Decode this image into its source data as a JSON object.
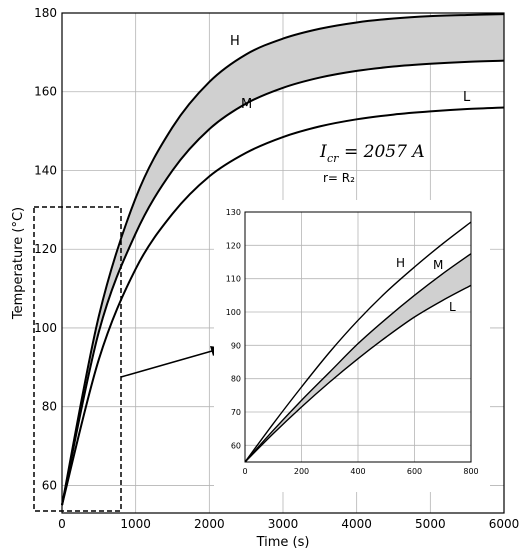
{
  "chart_data": [
    {
      "type": "line",
      "xlabel": "Time (s)",
      "ylabel": "Temperature (°C)",
      "xlim": [
        0,
        6000
      ],
      "ylim": [
        53,
        180
      ],
      "x_ticks": [
        "0",
        "1000",
        "2000",
        "3000",
        "4000",
        "5000",
        "6000"
      ],
      "y_ticks": [
        "60",
        "80",
        "100",
        "120",
        "140",
        "160",
        "180"
      ],
      "grid": true,
      "series": [
        {
          "name": "H",
          "x": [
            0,
            500,
            1000,
            1500,
            2000,
            2500,
            3000,
            3500,
            4000,
            4500,
            5000,
            5500,
            6000
          ],
          "values": [
            55,
            103,
            133,
            151,
            162.5,
            169.5,
            173.5,
            176,
            177.6,
            178.6,
            179.2,
            179.5,
            179.7
          ]
        },
        {
          "name": "M",
          "x": [
            0,
            500,
            1000,
            1500,
            2000,
            2500,
            3000,
            3500,
            4000,
            4500,
            5000,
            5500,
            6000
          ],
          "values": [
            55,
            99,
            124,
            140,
            150.5,
            157,
            161,
            163.6,
            165.3,
            166.4,
            167.1,
            167.6,
            167.9
          ]
        },
        {
          "name": "L",
          "x": [
            0,
            500,
            1000,
            1500,
            2000,
            2500,
            3000,
            3500,
            4000,
            4500,
            5000,
            5500,
            6000
          ],
          "values": [
            55,
            92,
            115,
            129,
            138.5,
            144.5,
            148.5,
            151.2,
            153,
            154.2,
            155,
            155.6,
            156
          ]
        }
      ],
      "shaded_band": [
        "H",
        "M"
      ],
      "annotations": [
        "H",
        "M",
        "L",
        "I",
        "cr",
        "= 2057 A",
        "r= R₂"
      ]
    },
    {
      "type": "line",
      "role": "inset",
      "xlim": [
        0,
        800
      ],
      "ylim": [
        55,
        130
      ],
      "x_ticks": [
        "0",
        "200",
        "400",
        "600",
        "800"
      ],
      "y_ticks": [
        "60",
        "70",
        "80",
        "90",
        "100",
        "110",
        "120",
        "130"
      ],
      "grid": true,
      "series": [
        {
          "name": "H",
          "x": [
            0,
            100,
            200,
            300,
            400,
            500,
            600,
            700,
            800
          ],
          "values": [
            55,
            66.5,
            77.5,
            88,
            97.5,
            106,
            113.5,
            120.5,
            127
          ]
        },
        {
          "name": "M",
          "x": [
            0,
            100,
            200,
            300,
            400,
            500,
            600,
            700,
            800
          ],
          "values": [
            55,
            64.5,
            73.5,
            82,
            90.5,
            98,
            105,
            111.5,
            117.5
          ]
        },
        {
          "name": "L",
          "x": [
            0,
            100,
            200,
            300,
            400,
            500,
            600,
            700,
            800
          ],
          "values": [
            55,
            63.5,
            71.5,
            79,
            86,
            92.5,
            98.5,
            103.5,
            108
          ]
        }
      ],
      "shaded_band": [
        "M",
        "L"
      ],
      "annotations": [
        "H",
        "M",
        "L"
      ]
    }
  ]
}
